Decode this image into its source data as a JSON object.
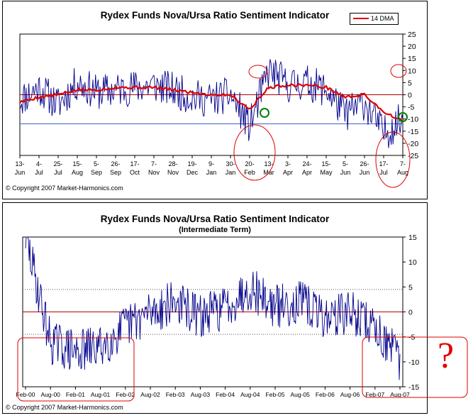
{
  "chart_data": [
    {
      "type": "line",
      "title": "Rydex Funds Nova/Ursa Ratio Sentiment Indicator",
      "copyright": "© Copyright 2007 Market-Harmonics.com",
      "legend": {
        "label": "14 DMA",
        "color": "#e00000",
        "position": "top-right"
      },
      "ylim": [
        -25,
        25
      ],
      "yticks": [
        "25",
        "20",
        "15",
        "10",
        "5",
        "0",
        "-5",
        "-10",
        "-15",
        "-20",
        "-25"
      ],
      "reference_lines": [
        {
          "y": 0,
          "color": "#b00000"
        },
        {
          "y": -12,
          "color": "#4060d0"
        }
      ],
      "x_tick_labels": [
        [
          "13-",
          "Jun"
        ],
        [
          "4-",
          "Jul"
        ],
        [
          "25-",
          "Jul"
        ],
        [
          "15-",
          "Aug"
        ],
        [
          "5-",
          "Sep"
        ],
        [
          "26-",
          "Sep"
        ],
        [
          "17-",
          "Oct"
        ],
        [
          "7-",
          "Nov"
        ],
        [
          "28-",
          "Nov"
        ],
        [
          "19-",
          "Dec"
        ],
        [
          "9-",
          "Jan"
        ],
        [
          "30-",
          "Jan"
        ],
        [
          "20-",
          "Feb"
        ],
        [
          "13-",
          "Mar"
        ],
        [
          "3-",
          "Apr"
        ],
        [
          "24-",
          "Apr"
        ],
        [
          "15-",
          "May"
        ],
        [
          "5-",
          "Jun"
        ],
        [
          "26-",
          "Jun"
        ],
        [
          "17-",
          "Jul"
        ],
        [
          "7-",
          "Aug"
        ]
      ],
      "series": [
        {
          "name": "Nova/Ursa Ratio",
          "color": "#00008b",
          "x": [
            0,
            1,
            2,
            3,
            4,
            5,
            6,
            7,
            8,
            9,
            10,
            11,
            12,
            13,
            14,
            15,
            16,
            17,
            18,
            19,
            20
          ],
          "values": [
            -2,
            3,
            -4,
            5,
            1,
            2,
            3,
            4,
            2,
            -1,
            -2,
            0,
            -13,
            10,
            4,
            5,
            2,
            -8,
            -3,
            -16,
            -10
          ]
        },
        {
          "name": "14 DMA",
          "color": "#e00000",
          "x": [
            0,
            1,
            2,
            3,
            4,
            5,
            6,
            7,
            8,
            9,
            10,
            11,
            12,
            13,
            14,
            15,
            16,
            17,
            18,
            19,
            20
          ],
          "values": [
            -3,
            -1,
            0,
            2,
            2,
            3,
            3,
            3,
            2,
            1,
            0,
            0,
            -6,
            3,
            4,
            4,
            3,
            -1,
            0,
            -7,
            -11
          ]
        }
      ],
      "annotations": [
        {
          "shape": "ellipse",
          "color": "red",
          "near": "20-Feb to 13-Mar, low"
        },
        {
          "shape": "ellipse",
          "color": "red",
          "near": "13-Mar, high"
        },
        {
          "shape": "circle",
          "color": "green",
          "near": "13-Mar, 14 DMA low"
        },
        {
          "shape": "ellipse",
          "color": "red",
          "near": "7-Aug, high"
        },
        {
          "shape": "ellipse",
          "color": "red",
          "near": "17-Jul to 7-Aug, low"
        },
        {
          "shape": "circle",
          "color": "green",
          "near": "7-Aug, 14 DMA low"
        }
      ]
    },
    {
      "type": "line",
      "title": "Rydex Funds Nova/Ursa Ratio Sentiment Indicator",
      "subtitle": "(Intermediate Term)",
      "copyright": "© Copyright 2007 Market-Harmonics.com",
      "ylim": [
        -15,
        15
      ],
      "yticks": [
        "15",
        "10",
        "5",
        "0",
        "-5",
        "-10",
        "-15"
      ],
      "reference_lines": [
        {
          "y": 0,
          "color": "#b00000"
        },
        {
          "y": 4.5,
          "color": "#555555",
          "style": "dotted"
        },
        {
          "y": -4.5,
          "color": "#555555",
          "style": "dotted"
        }
      ],
      "x_tick_labels": [
        "Feb-00",
        "Aug-00",
        "Feb-01",
        "Aug-01",
        "Feb-02",
        "Aug-02",
        "Feb-03",
        "Aug-03",
        "Feb-04",
        "Aug-04",
        "Feb-05",
        "Aug-05",
        "Feb-06",
        "Aug-06",
        "Feb-07",
        "Aug-07"
      ],
      "series": [
        {
          "name": "Nova/Ursa Ratio",
          "color": "#00008b",
          "x": [
            0,
            1,
            2,
            3,
            4,
            5,
            6,
            7,
            8,
            9,
            10,
            11,
            12,
            13,
            14,
            15
          ],
          "values": [
            15,
            -6,
            -8,
            -7,
            -3,
            0,
            2,
            -1,
            1,
            5,
            1,
            2,
            -1,
            0,
            -3,
            -10
          ]
        }
      ],
      "annotations": [
        {
          "shape": "rounded-rectangle",
          "color": "red",
          "near": "Feb-00 to Feb-02, below 0"
        },
        {
          "shape": "rounded-rectangle",
          "color": "red",
          "near": "Feb-07 to Aug-07, below 0"
        },
        {
          "shape": "text",
          "text": "?",
          "color": "red"
        }
      ]
    }
  ]
}
